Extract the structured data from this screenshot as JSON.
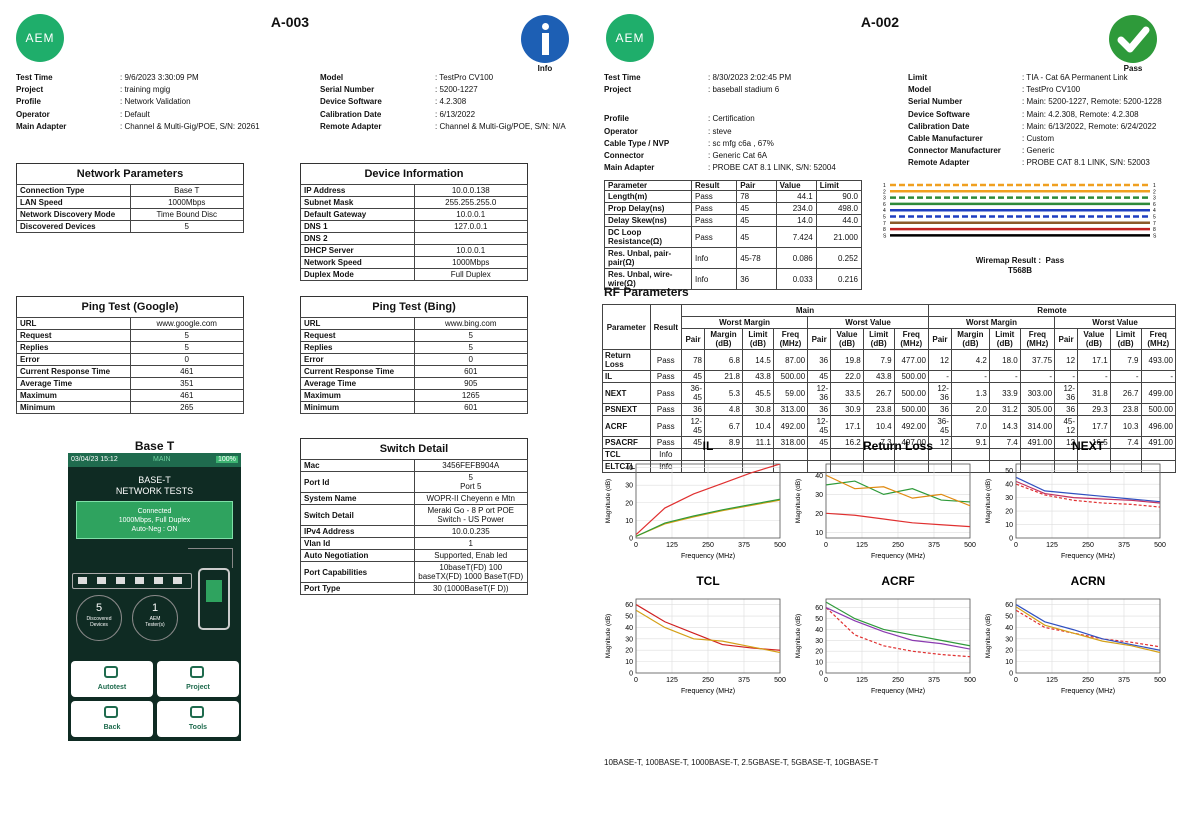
{
  "left": {
    "logo": "AEM",
    "title": "A-003",
    "status": "Info",
    "info_left": [
      [
        "Test Time",
        ": 9/6/2023 3:30:09 PM"
      ],
      [
        "Project",
        ": training mgig"
      ],
      [
        "Profile",
        ": Network Validation"
      ],
      [
        "Operator",
        ": Default"
      ],
      [
        "Main Adapter",
        ": Channel & Multi-Gig/POE, S/N: 20261"
      ]
    ],
    "info_right": [
      [
        "Model",
        ": TestPro CV100"
      ],
      [
        "Serial Number",
        ": 5200-1227"
      ],
      [
        "Device Software",
        ": 4.2.308"
      ],
      [
        "Calibration Date",
        ": 6/13/2022"
      ],
      [
        "Remote Adapter",
        ": Channel & Multi-Gig/POE, S/N: N/A"
      ]
    ],
    "panels": [
      {
        "title": "Network Parameters",
        "rows": [
          [
            "Connection Type",
            "Base T"
          ],
          [
            "LAN Speed",
            "1000Mbps"
          ],
          [
            "Network Discovery Mode",
            "Time Bound Disc"
          ],
          [
            "Discovered Devices",
            "5"
          ]
        ]
      },
      {
        "title": "Device Information",
        "rows": [
          [
            "IP Address",
            "10.0.0.138"
          ],
          [
            "Subnet Mask",
            "255.255.255.0"
          ],
          [
            "Default Gateway",
            "10.0.0.1"
          ],
          [
            "DNS 1",
            "127.0.0.1"
          ],
          [
            "DNS 2",
            null
          ],
          [
            "DHCP Server",
            "10.0.0.1"
          ],
          [
            "Network Speed",
            "1000Mbps"
          ],
          [
            "Duplex Mode",
            "Full Duplex"
          ]
        ]
      },
      {
        "title": "Ping Test (Google)",
        "rows": [
          [
            "URL",
            "www.google.com"
          ],
          [
            "Request",
            "5"
          ],
          [
            "Replies",
            "5"
          ],
          [
            "Error",
            "0"
          ],
          [
            "Current Response Time",
            "461"
          ],
          [
            "Average Time",
            "351"
          ],
          [
            "Maximum",
            "461"
          ],
          [
            "Minimum",
            "265"
          ]
        ]
      },
      {
        "title": "Ping Test (Bing)",
        "rows": [
          [
            "URL",
            "www.bing.com"
          ],
          [
            "Request",
            "5"
          ],
          [
            "Replies",
            "5"
          ],
          [
            "Error",
            "0"
          ],
          [
            "Current Response Time",
            "601"
          ],
          [
            "Average Time",
            "905"
          ],
          [
            "Maximum",
            "1265"
          ],
          [
            "Minimum",
            "601"
          ]
        ]
      },
      {
        "title": "Switch Detail",
        "rows": [
          [
            "Mac",
            "3456FEFB904A"
          ],
          [
            "Port Id",
            "5\nPort 5"
          ],
          [
            "System Name",
            "WOPR-II Cheyenn e Mtn"
          ],
          [
            "Switch Detail",
            "Meraki Go - 8 P ort POE\nSwitch - US Power"
          ],
          [
            "IPv4 Address",
            "10.0.0.235"
          ],
          [
            "Vlan Id",
            "1"
          ],
          [
            "Auto Negotiation",
            "Supported, Enab led"
          ],
          [
            "Port Capabilities",
            "10baseT(FD) 100\nbaseTX(FD) 1000 BaseT(FD)"
          ],
          [
            "Port Type",
            "30 (1000BaseT(F D))"
          ]
        ]
      }
    ],
    "device": {
      "title": "Base T",
      "clock": "03/04/23 15:12",
      "tab": "MAIN",
      "battery": "100%",
      "heading": "BASE-T\nNETWORK TESTS",
      "status": "Connected\n1000Mbps, Full Duplex\nAuto-Neg : ON",
      "devices_count": "5",
      "devices_label": "Discovered\nDevices",
      "testers_count": "1",
      "testers_label": "AEM\nTester(s)",
      "buttons": [
        "Autotest",
        "Project",
        "Back",
        "Tools"
      ]
    }
  },
  "right": {
    "logo": "AEM",
    "title": "A-002",
    "status": "Pass",
    "info_left": [
      [
        "Test Time",
        ": 8/30/2023 2:02:45 PM"
      ],
      [
        "Project",
        ": baseball stadium 6"
      ],
      [
        "Profile",
        ": Certification"
      ],
      [
        "Operator",
        ": steve"
      ],
      [
        "Cable Type / NVP",
        ": sc mfg c6a , 67%"
      ],
      [
        "Connector",
        ": Generic Cat 6A"
      ],
      [
        "Main Adapter",
        ": PROBE CAT 8.1 LINK, S/N: 52004"
      ]
    ],
    "info_right": [
      [
        "Limit",
        ": TIA - Cat 6A Permanent Link"
      ],
      [
        "Model",
        ": TestPro CV100"
      ],
      [
        "Serial Number",
        ": Main: 5200-1227, Remote: 5200-1228"
      ],
      [
        "Device Software",
        ": Main: 4.2.308, Remote: 4.2.308"
      ],
      [
        "Calibration Date",
        ": Main: 6/13/2022, Remote: 6/24/2022"
      ],
      [
        "Cable Manufacturer",
        ": Custom"
      ],
      [
        "Connector Manufacturer",
        ": Generic"
      ],
      [
        "Remote Adapter",
        ": PROBE CAT 8.1 LINK, S/N: 52003"
      ]
    ],
    "summary": {
      "header": [
        "Parameter",
        "Result",
        "Pair",
        "Value",
        "Limit"
      ],
      "rows": [
        [
          "Length(m)",
          "Pass",
          "78",
          "44.1",
          "90.0"
        ],
        [
          "Prop Delay(ns)",
          "Pass",
          "45",
          "234.0",
          "498.0"
        ],
        [
          "Delay Skew(ns)",
          "Pass",
          "45",
          "14.0",
          "44.0"
        ],
        [
          "DC Loop Resistance(Ω)",
          "Pass",
          "45",
          "7.424",
          "21.000"
        ],
        [
          "Res. Unbal, pair-pair(Ω)",
          "Info",
          "45-78",
          "0.086",
          "0.252"
        ],
        [
          "Res. Unbal, wire-wire(Ω)",
          "Info",
          "36",
          "0.033",
          "0.216"
        ]
      ]
    },
    "wiremap": {
      "pins": [
        "1",
        "2",
        "3",
        "6",
        "4",
        "5",
        "7",
        "8",
        "S"
      ],
      "result": "Wiremap Result :  Pass",
      "standard": "T568B"
    },
    "rf": {
      "title": "RF Parameters",
      "parameter": "Parameter",
      "result": "Result",
      "main": "Main",
      "remote": "Remote",
      "worst_margin": "Worst Margin",
      "worst_value": "Worst Value",
      "columns": [
        "Pair",
        "Margin (dB)",
        "Limit (dB)",
        "Freq (MHz)",
        "Pair",
        "Value (dB)",
        "Limit (dB)",
        "Freq (MHz)"
      ],
      "rows": [
        [
          "Return Loss",
          "Pass",
          "78",
          "6.8",
          "14.5",
          "87.00",
          "36",
          "19.8",
          "7.9",
          "477.00",
          "12",
          "4.2",
          "18.0",
          "37.75",
          "12",
          "17.1",
          "7.9",
          "493.00"
        ],
        [
          "IL",
          "Pass",
          "45",
          "21.8",
          "43.8",
          "500.00",
          "45",
          "22.0",
          "43.8",
          "500.00",
          "-",
          "-",
          "-",
          "-",
          "-",
          "-",
          "-",
          "-"
        ],
        [
          "NEXT",
          "Pass",
          "36-45",
          "5.3",
          "45.5",
          "59.00",
          "12-36",
          "33.5",
          "26.7",
          "500.00",
          "12-36",
          "1.3",
          "33.9",
          "303.00",
          "12-36",
          "31.8",
          "26.7",
          "499.00"
        ],
        [
          "PSNEXT",
          "Pass",
          "36",
          "4.8",
          "30.8",
          "313.00",
          "36",
          "30.9",
          "23.8",
          "500.00",
          "36",
          "2.0",
          "31.2",
          "305.00",
          "36",
          "29.3",
          "23.8",
          "500.00"
        ],
        [
          "ACRF",
          "Pass",
          "12-45",
          "6.7",
          "10.4",
          "492.00",
          "12-45",
          "17.1",
          "10.4",
          "492.00",
          "36-45",
          "7.0",
          "14.3",
          "314.00",
          "45-12",
          "17.7",
          "10.3",
          "496.00"
        ],
        [
          "PSACRF",
          "Pass",
          "45",
          "8.9",
          "11.1",
          "318.00",
          "45",
          "16.2",
          "7.3",
          "497.00",
          "12",
          "9.1",
          "7.4",
          "491.00",
          "12",
          "16.5",
          "7.4",
          "491.00"
        ],
        [
          "TCL",
          "Info",
          null,
          null,
          null,
          null,
          null,
          null,
          null,
          null,
          null,
          null,
          null,
          null,
          null,
          null,
          null,
          null
        ],
        [
          "ELTCTL",
          "Info",
          null,
          null,
          null,
          null,
          null,
          null,
          null,
          null,
          null,
          null,
          null,
          null,
          null,
          null,
          null,
          null
        ]
      ]
    },
    "charts": [
      {
        "type": "line",
        "title": "IL",
        "xlabel": "Frequency (MHz)",
        "ylabel": "Magnitude (dB)",
        "xlim": [
          0,
          500
        ],
        "ylim": [
          0,
          42
        ],
        "xticks": [
          0,
          125,
          250,
          375,
          500
        ],
        "yticks": [
          0,
          10,
          20,
          30,
          40
        ],
        "x": [
          1,
          100,
          200,
          300,
          400,
          500
        ],
        "series": [
          {
            "color": "#e03030",
            "values": [
              2,
              17,
              25,
              31,
              37,
              42
            ]
          },
          {
            "color": "#d4a017",
            "values": [
              1,
              8,
              12,
              15.5,
              18.5,
              21.5
            ]
          },
          {
            "color": "#2e9a3a",
            "values": [
              1,
              8.5,
              12.5,
              16,
              19,
              22
            ]
          }
        ]
      },
      {
        "type": "line",
        "title": "Return Loss",
        "xlabel": "Frequency (MHz)",
        "ylabel": "Magnitude (dB)",
        "xlim": [
          0,
          500
        ],
        "ylim": [
          7,
          46
        ],
        "xticks": [
          0,
          125,
          250,
          375,
          500
        ],
        "yticks": [
          10,
          20,
          30,
          40
        ],
        "x": [
          1,
          100,
          200,
          300,
          400,
          500
        ],
        "series": [
          {
            "color": "#e03030",
            "values": [
              20,
              19,
              17,
              15,
              14,
              13
            ]
          },
          {
            "color": "#2e9a3a",
            "values": [
              35,
              37,
              30,
              33,
              27,
              26
            ]
          },
          {
            "color": "#e08a10",
            "values": [
              40,
              33,
              34,
              28,
              30,
              24
            ]
          }
        ]
      },
      {
        "type": "line",
        "title": "NEXT",
        "xlabel": "Frequency (MHz)",
        "ylabel": "Magnitude (dB)",
        "xlim": [
          0,
          500
        ],
        "ylim": [
          0,
          55
        ],
        "xticks": [
          0,
          125,
          250,
          375,
          500
        ],
        "yticks": [
          0,
          10,
          20,
          30,
          40,
          50
        ],
        "x": [
          1,
          100,
          200,
          300,
          400,
          500
        ],
        "series": [
          {
            "color": "#e03030",
            "dash": true,
            "values": [
              40,
              32,
              28,
              26,
              25,
              23
            ]
          },
          {
            "color": "#3050c0",
            "values": [
              45,
              35,
              33,
              31,
              29,
              27
            ]
          },
          {
            "color": "#c03060",
            "values": [
              42,
              33,
              30,
              29,
              28,
              26
            ]
          }
        ]
      },
      {
        "type": "line",
        "title": "TCL",
        "xlabel": "Frequency (MHz)",
        "ylabel": "Magnitude (dB)",
        "xlim": [
          0,
          500
        ],
        "ylim": [
          0,
          65
        ],
        "xticks": [
          0,
          125,
          250,
          375,
          500
        ],
        "yticks": [
          0,
          10,
          20,
          30,
          40,
          50,
          60
        ],
        "x": [
          1,
          100,
          200,
          300,
          400,
          500
        ],
        "series": [
          {
            "color": "#d02020",
            "values": [
              60,
              45,
              35,
              25,
              22,
              20
            ]
          },
          {
            "color": "#d4a017",
            "values": [
              55,
              40,
              30,
              28,
              23,
              18
            ]
          }
        ]
      },
      {
        "type": "line",
        "title": "ACRF",
        "xlabel": "Frequency (MHz)",
        "ylabel": "Magnitude (dB)",
        "xlim": [
          0,
          500
        ],
        "ylim": [
          0,
          68
        ],
        "xticks": [
          0,
          125,
          250,
          375,
          500
        ],
        "yticks": [
          0,
          10,
          20,
          30,
          40,
          50,
          60
        ],
        "x": [
          1,
          100,
          200,
          300,
          400,
          500
        ],
        "series": [
          {
            "color": "#e03030",
            "dash": true,
            "values": [
              60,
              35,
              25,
              20,
              17,
              15
            ]
          },
          {
            "color": "#2e9a3a",
            "values": [
              65,
              50,
              40,
              35,
              30,
              25
            ]
          },
          {
            "color": "#8a3ab0",
            "values": [
              60,
              48,
              38,
              30,
              27,
              22
            ]
          }
        ]
      },
      {
        "type": "line",
        "title": "ACRN",
        "xlabel": "Frequency (MHz)",
        "ylabel": "Magnitude (dB)",
        "xlim": [
          0,
          500
        ],
        "ylim": [
          0,
          65
        ],
        "xticks": [
          0,
          125,
          250,
          375,
          500
        ],
        "yticks": [
          0,
          10,
          20,
          30,
          40,
          50,
          60
        ],
        "x": [
          1,
          100,
          200,
          300,
          400,
          500
        ],
        "series": [
          {
            "color": "#e03030",
            "dash": true,
            "values": [
              55,
              40,
              35,
              30,
              27,
              23
            ]
          },
          {
            "color": "#3050c0",
            "values": [
              60,
              45,
              38,
              30,
              25,
              20
            ]
          },
          {
            "color": "#d4a017",
            "values": [
              58,
              42,
              35,
              28,
              24,
              18
            ]
          }
        ]
      }
    ],
    "footer": "10BASE-T, 100BASE-T, 1000BASE-T, 2.5GBASE-T, 5GBASE-T, 10GBASE-T"
  }
}
